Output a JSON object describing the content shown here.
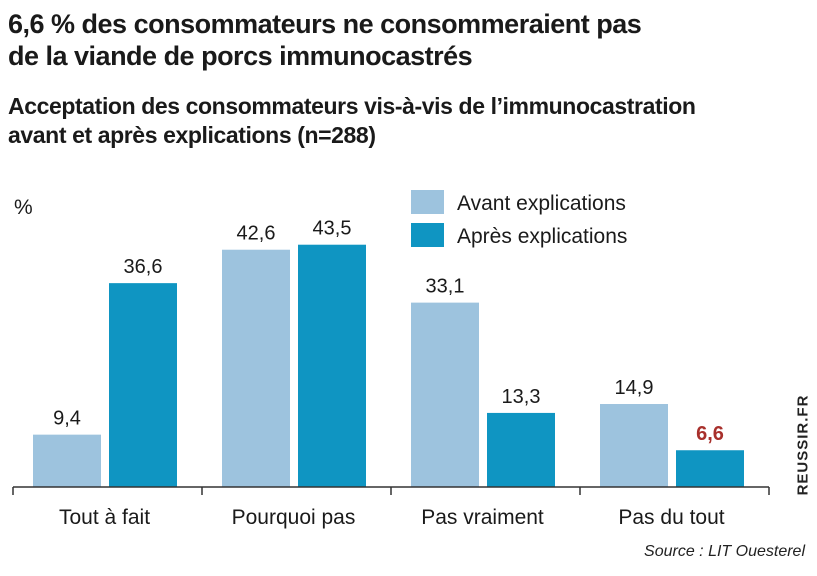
{
  "header": {
    "title_line1": "6,6 % des consommateurs ne consommeraient pas",
    "title_line2": "de la viande de porcs immunocastrés",
    "subtitle_line1": "Acceptation des consommateurs vis-à-vis de l’immunocastration",
    "subtitle_line2": "avant et après explications (n=288)"
  },
  "source": "Source : LIT Ouesterel",
  "brand": "REUSSIR.FR",
  "colors": {
    "avant": "#9dc3de",
    "apres": "#0f95c2",
    "highlight_label": "#a8302c"
  },
  "chart_data": {
    "type": "bar",
    "ylabel": "%",
    "categories": [
      "Tout à fait",
      "Pourquoi pas",
      "Pas vraiment",
      "Pas du tout"
    ],
    "series": [
      {
        "name": "Avant explications",
        "values": [
          9.4,
          42.6,
          33.1,
          14.9
        ],
        "labels": [
          "9,4",
          "42,6",
          "33,1",
          "14,9"
        ]
      },
      {
        "name": "Après explications",
        "values": [
          36.6,
          43.5,
          13.3,
          6.6
        ],
        "labels": [
          "36,6",
          "43,5",
          "13,3",
          "6,6"
        ]
      }
    ],
    "highlight": {
      "series": 1,
      "index": 3
    },
    "legend_position": "top-right",
    "grid": false
  }
}
